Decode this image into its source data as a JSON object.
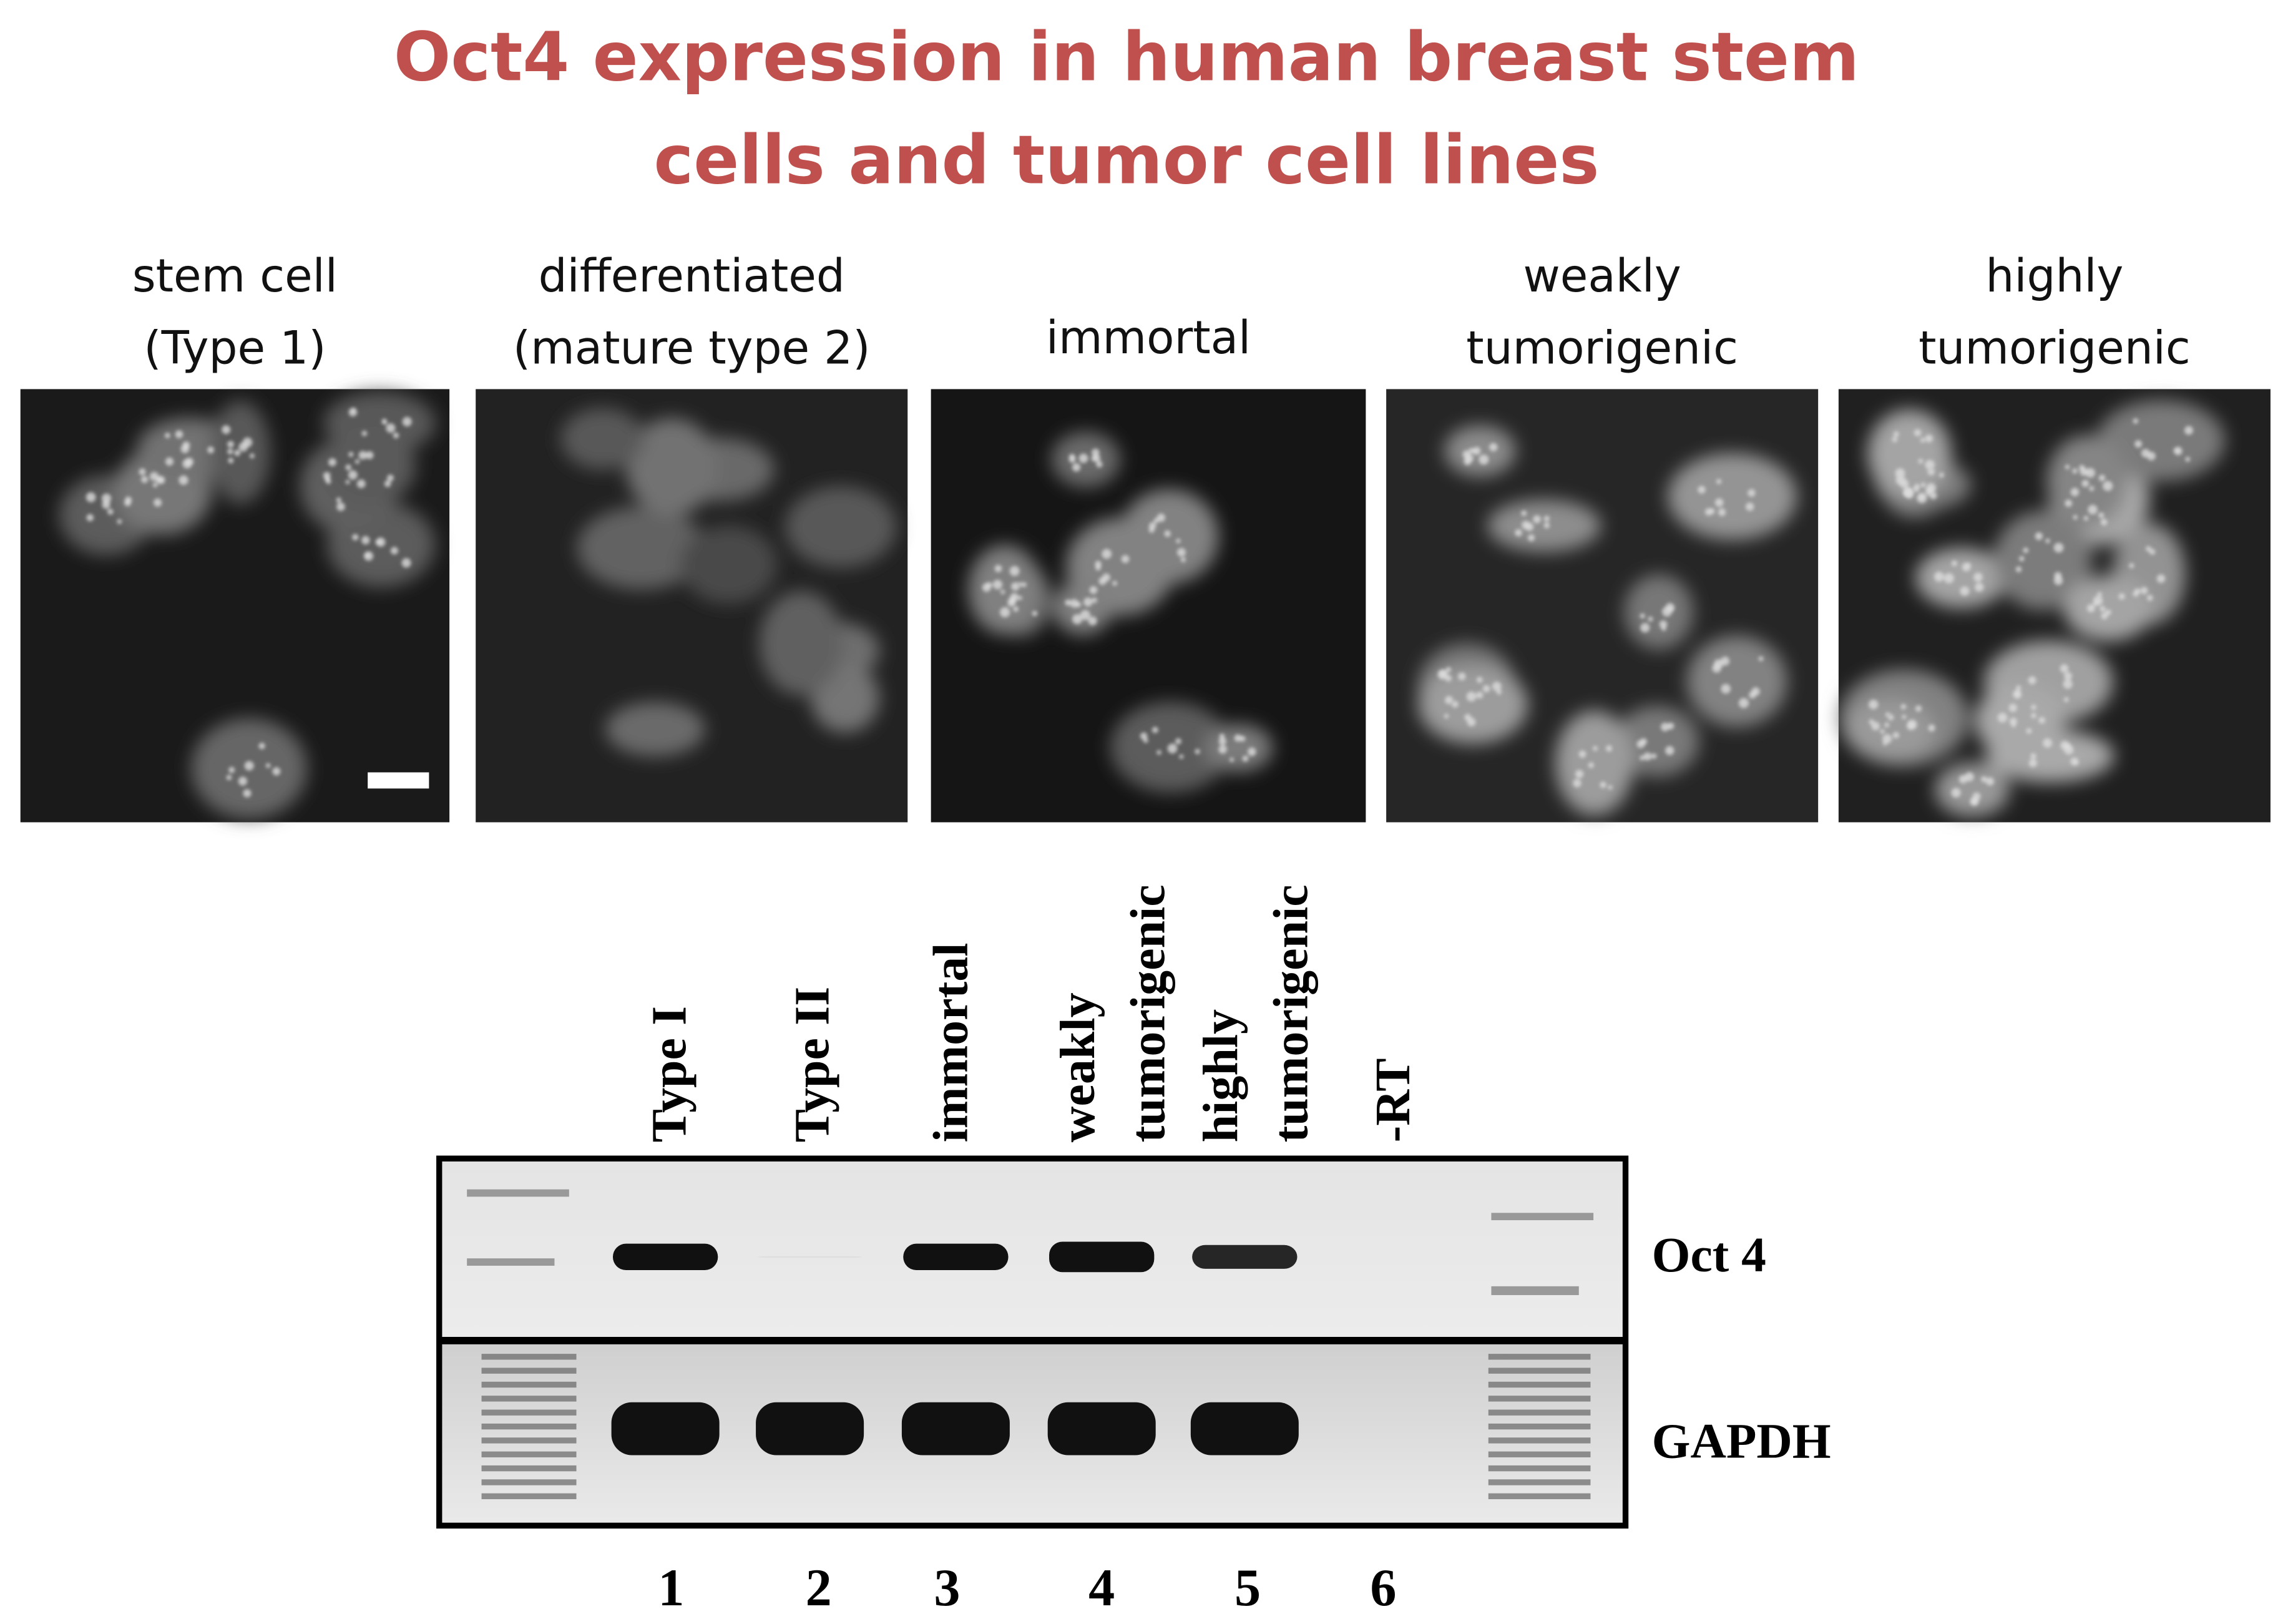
{
  "title_lines": [
    "Oct4 expression in human breast stem",
    "cells and tumor cell lines"
  ],
  "panels": [
    {
      "label_lines": [
        "stem cell",
        "(Type 1)"
      ]
    },
    {
      "label_lines": [
        "differentiated",
        "(mature type 2)"
      ]
    },
    {
      "label_lines": [
        "immortal"
      ]
    },
    {
      "label_lines": [
        "weakly",
        "tumorigenic"
      ]
    },
    {
      "label_lines": [
        "highly",
        "tumorigenic"
      ]
    }
  ],
  "gel": {
    "lanes": [
      {
        "label_lines": [
          "Type I"
        ],
        "number": 1
      },
      {
        "label_lines": [
          "Type II"
        ],
        "number": 2
      },
      {
        "label_lines": [
          "immortal"
        ],
        "number": 3
      },
      {
        "label_lines": [
          "weakly",
          "tumorigenic"
        ],
        "number": 4
      },
      {
        "label_lines": [
          "highly",
          "tumorigenic"
        ],
        "number": 5
      },
      {
        "label_lines": [
          "-RT"
        ],
        "number": 6
      }
    ],
    "rows": [
      "Oct 4",
      "GAPDH"
    ]
  }
}
